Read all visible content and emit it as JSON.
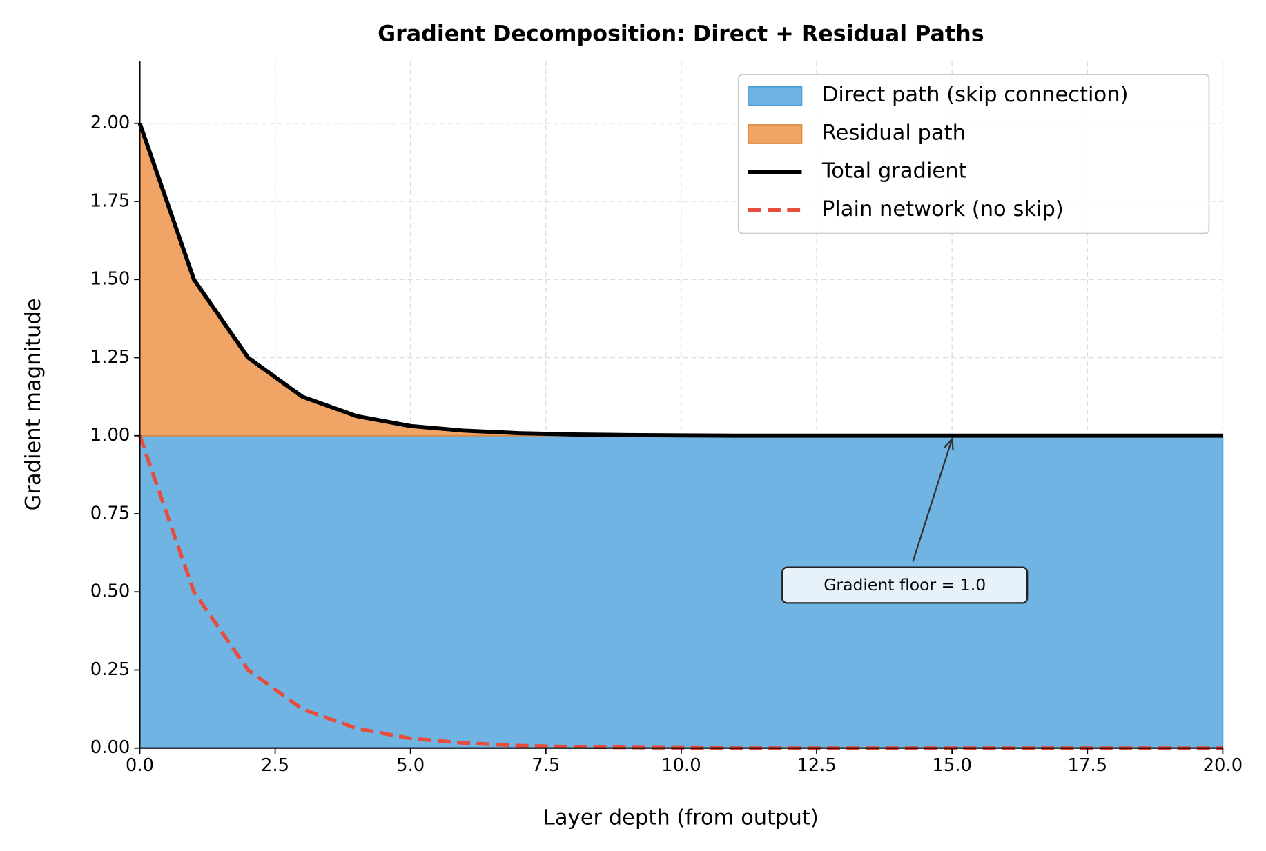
{
  "chart_data": {
    "type": "area",
    "title": "Gradient Decomposition: Direct + Residual Paths",
    "xlabel": "Layer depth (from output)",
    "ylabel": "Gradient magnitude",
    "x": [
      0,
      1,
      2,
      3,
      4,
      5,
      6,
      7,
      8,
      9,
      10,
      11,
      12,
      13,
      14,
      15,
      16,
      17,
      18,
      19,
      20
    ],
    "series": [
      {
        "name": "Direct path (skip connection)",
        "style": "area",
        "color": "#6fb4e2",
        "edge": "#4a9fd8",
        "values": [
          1,
          1,
          1,
          1,
          1,
          1,
          1,
          1,
          1,
          1,
          1,
          1,
          1,
          1,
          1,
          1,
          1,
          1,
          1,
          1,
          1
        ]
      },
      {
        "name": "Residual path",
        "style": "area",
        "color": "#f0a566",
        "edge": "#e0883a",
        "values": [
          1,
          0.5,
          0.25,
          0.125,
          0.063,
          0.031,
          0.016,
          0.008,
          0.004,
          0.002,
          0.001,
          0,
          0,
          0,
          0,
          0,
          0,
          0,
          0,
          0,
          0
        ]
      },
      {
        "name": "Total gradient",
        "style": "line",
        "color": "#000000",
        "values": [
          2,
          1.5,
          1.25,
          1.125,
          1.063,
          1.031,
          1.016,
          1.008,
          1.004,
          1.002,
          1.001,
          1,
          1,
          1,
          1,
          1,
          1,
          1,
          1,
          1,
          1
        ]
      },
      {
        "name": "Plain network (no skip)",
        "style": "dashed",
        "color": "#e74c3c",
        "values": [
          1,
          0.5,
          0.25,
          0.125,
          0.063,
          0.031,
          0.016,
          0.008,
          0.004,
          0.002,
          0.001,
          0,
          0,
          0,
          0,
          0,
          0,
          0,
          0,
          0,
          0
        ]
      }
    ],
    "xlim": [
      0,
      20
    ],
    "ylim": [
      0,
      2.2
    ],
    "xticks": [
      {
        "value": 0,
        "label": "0.0"
      },
      2.5,
      {
        "value": 5,
        "label": "5.0"
      },
      7.5,
      {
        "value": 10,
        "label": "10.0"
      },
      12.5,
      {
        "value": 15,
        "label": "15.0"
      },
      17.5,
      {
        "value": 20,
        "label": "20.0"
      }
    ],
    "yticks": [
      {
        "value": 0,
        "label": "0.00"
      },
      0.25,
      {
        "value": 0.5,
        "label": "0.50"
      },
      0.75,
      {
        "value": 1,
        "label": "1.00"
      },
      1.25,
      {
        "value": 1.5,
        "label": "1.50"
      },
      1.75,
      {
        "value": 2,
        "label": "2.00"
      }
    ],
    "grid": true,
    "legend": "upper right",
    "annotation": {
      "text": "Gradient floor = 1.0",
      "x": 15,
      "y": 1.0
    }
  }
}
